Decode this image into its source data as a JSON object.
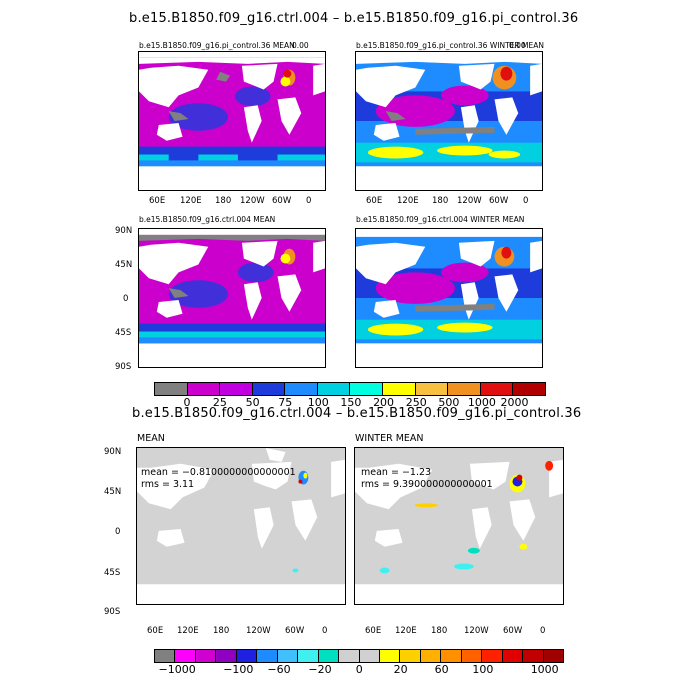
{
  "section1": {
    "title": "b.e15.B1850.f09_g16.ctrl.004  –  b.e15.B1850.f09_g16.pi_control.36",
    "panels": {
      "tl": {
        "label": "b.e15.B1850.f09_g16.pi_control.36 MEAN",
        "corner": "0.00"
      },
      "tr": {
        "label": "b.e15.B1850.f09_g16.pi_control.36 WINTER MEAN",
        "corner": "0.00"
      },
      "bl": {
        "label": "b.e15.B1850.f09_g16.ctrl.004 MEAN"
      },
      "br": {
        "label": "b.e15.B1850.f09_g16.ctrl.004 WINTER MEAN"
      }
    },
    "lon_ticks": [
      "60E",
      "120E",
      "180",
      "120W",
      "60W",
      "0"
    ],
    "lat_ticks": [
      "90N",
      "45N",
      "0",
      "45S",
      "90S"
    ],
    "colorbar": {
      "colors": [
        "#808080",
        "#cc00cc",
        "#c000e0",
        "#1e3cdc",
        "#1e8cff",
        "#00d0e0",
        "#00ffe0",
        "#ffff00",
        "#f8c040",
        "#f09020",
        "#e01010",
        "#b00000"
      ],
      "labels": [
        "0",
        "25",
        "50",
        "75",
        "100",
        "150",
        "200",
        "250",
        "500",
        "1000",
        "2000"
      ]
    }
  },
  "section2": {
    "title": "b.e15.B1850.f09_g16.ctrl.004  –  b.e15.B1850.f09_g16.pi_control.36",
    "panels": {
      "left": {
        "label": "MEAN",
        "mean": "mean = −0.8100000000000001",
        "rms": "rms = 3.11"
      },
      "right": {
        "label": "WINTER MEAN",
        "mean": "mean = −1.23",
        "rms": "rms = 9.390000000000001"
      }
    },
    "lon_ticks": [
      "60E",
      "120E",
      "180",
      "120W",
      "60W",
      "0"
    ],
    "lat_ticks": [
      "90N",
      "45N",
      "0",
      "45S",
      "90S"
    ],
    "colorbar": {
      "colors": [
        "#808080",
        "#ff00ff",
        "#d000d0",
        "#9000c0",
        "#2020e0",
        "#1e8cff",
        "#40c0ff",
        "#40f0f0",
        "#00e0c0",
        "#d0d0d0",
        "#d0d0d0",
        "#ffff00",
        "#ffd000",
        "#ffb000",
        "#ff9000",
        "#ff6000",
        "#ff2000",
        "#e00000",
        "#c00000",
        "#a00000"
      ],
      "labels": [
        "−1000",
        "−100",
        "−60",
        "−20",
        "0",
        "20",
        "60",
        "100",
        "1000"
      ]
    }
  }
}
